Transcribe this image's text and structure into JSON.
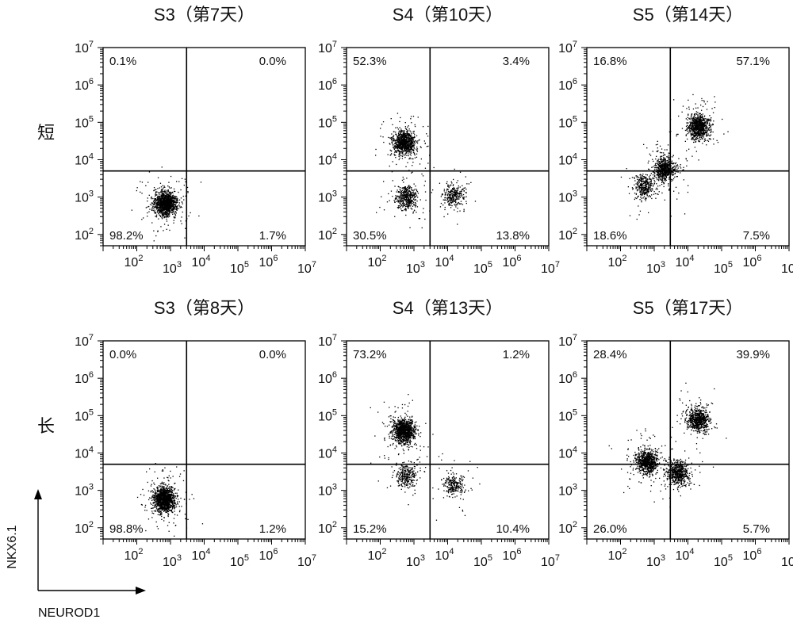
{
  "chart_data": {
    "type": "scatter",
    "x_axis_label": "NEUROD1",
    "y_axis_label": "NKX6.1",
    "axis_scale": "log",
    "axis_tick_labels": [
      "10^2",
      "10^3",
      "10^4",
      "10^5",
      "10^6",
      "10^7"
    ],
    "xlim": [
      10,
      10000000
    ],
    "ylim": [
      50,
      10000000
    ],
    "gate": {
      "x": 3000,
      "y": 5000
    },
    "rows": [
      {
        "label": "短",
        "panels": [
          {
            "title": "S3（第7天）",
            "quadrants": {
              "upper_left": "0.1%",
              "upper_right": "0.0%",
              "lower_left": "98.2%",
              "lower_right": "1.7%"
            },
            "clusters": [
              {
                "x": 700,
                "y": 700,
                "n": 1300
              }
            ]
          },
          {
            "title": "S4（第10天）",
            "quadrants": {
              "upper_left": "52.3%",
              "upper_right": "3.4%",
              "lower_left": "30.5%",
              "lower_right": "13.8%"
            },
            "clusters": [
              {
                "x": 500,
                "y": 30000,
                "n": 900
              },
              {
                "x": 600,
                "y": 1000,
                "n": 450
              },
              {
                "x": 15000,
                "y": 1200,
                "n": 300
              }
            ]
          },
          {
            "title": "S5（第14天）",
            "quadrants": {
              "upper_left": "16.8%",
              "upper_right": "57.1%",
              "lower_left": "18.6%",
              "lower_right": "7.5%"
            },
            "clusters": [
              {
                "x": 20000,
                "y": 80000,
                "n": 900
              },
              {
                "x": 2000,
                "y": 6000,
                "n": 700
              },
              {
                "x": 500,
                "y": 2000,
                "n": 350
              }
            ]
          }
        ]
      },
      {
        "label": "长",
        "panels": [
          {
            "title": "S3（第8天）",
            "quadrants": {
              "upper_left": "0.0%",
              "upper_right": "0.0%",
              "lower_left": "98.8%",
              "lower_right": "1.2%"
            },
            "clusters": [
              {
                "x": 650,
                "y": 600,
                "n": 1300
              }
            ]
          },
          {
            "title": "S4（第13天）",
            "quadrants": {
              "upper_left": "73.2%",
              "upper_right": "1.2%",
              "lower_left": "15.2%",
              "lower_right": "10.4%"
            },
            "clusters": [
              {
                "x": 500,
                "y": 40000,
                "n": 1100
              },
              {
                "x": 600,
                "y": 2500,
                "n": 300
              },
              {
                "x": 15000,
                "y": 1500,
                "n": 250
              }
            ]
          },
          {
            "title": "S5（第17天）",
            "quadrants": {
              "upper_left": "28.4%",
              "upper_right": "39.9%",
              "lower_left": "26.0%",
              "lower_right": "5.7%"
            },
            "clusters": [
              {
                "x": 600,
                "y": 6000,
                "n": 800
              },
              {
                "x": 20000,
                "y": 80000,
                "n": 700
              },
              {
                "x": 5000,
                "y": 3000,
                "n": 600
              }
            ]
          }
        ]
      }
    ]
  }
}
